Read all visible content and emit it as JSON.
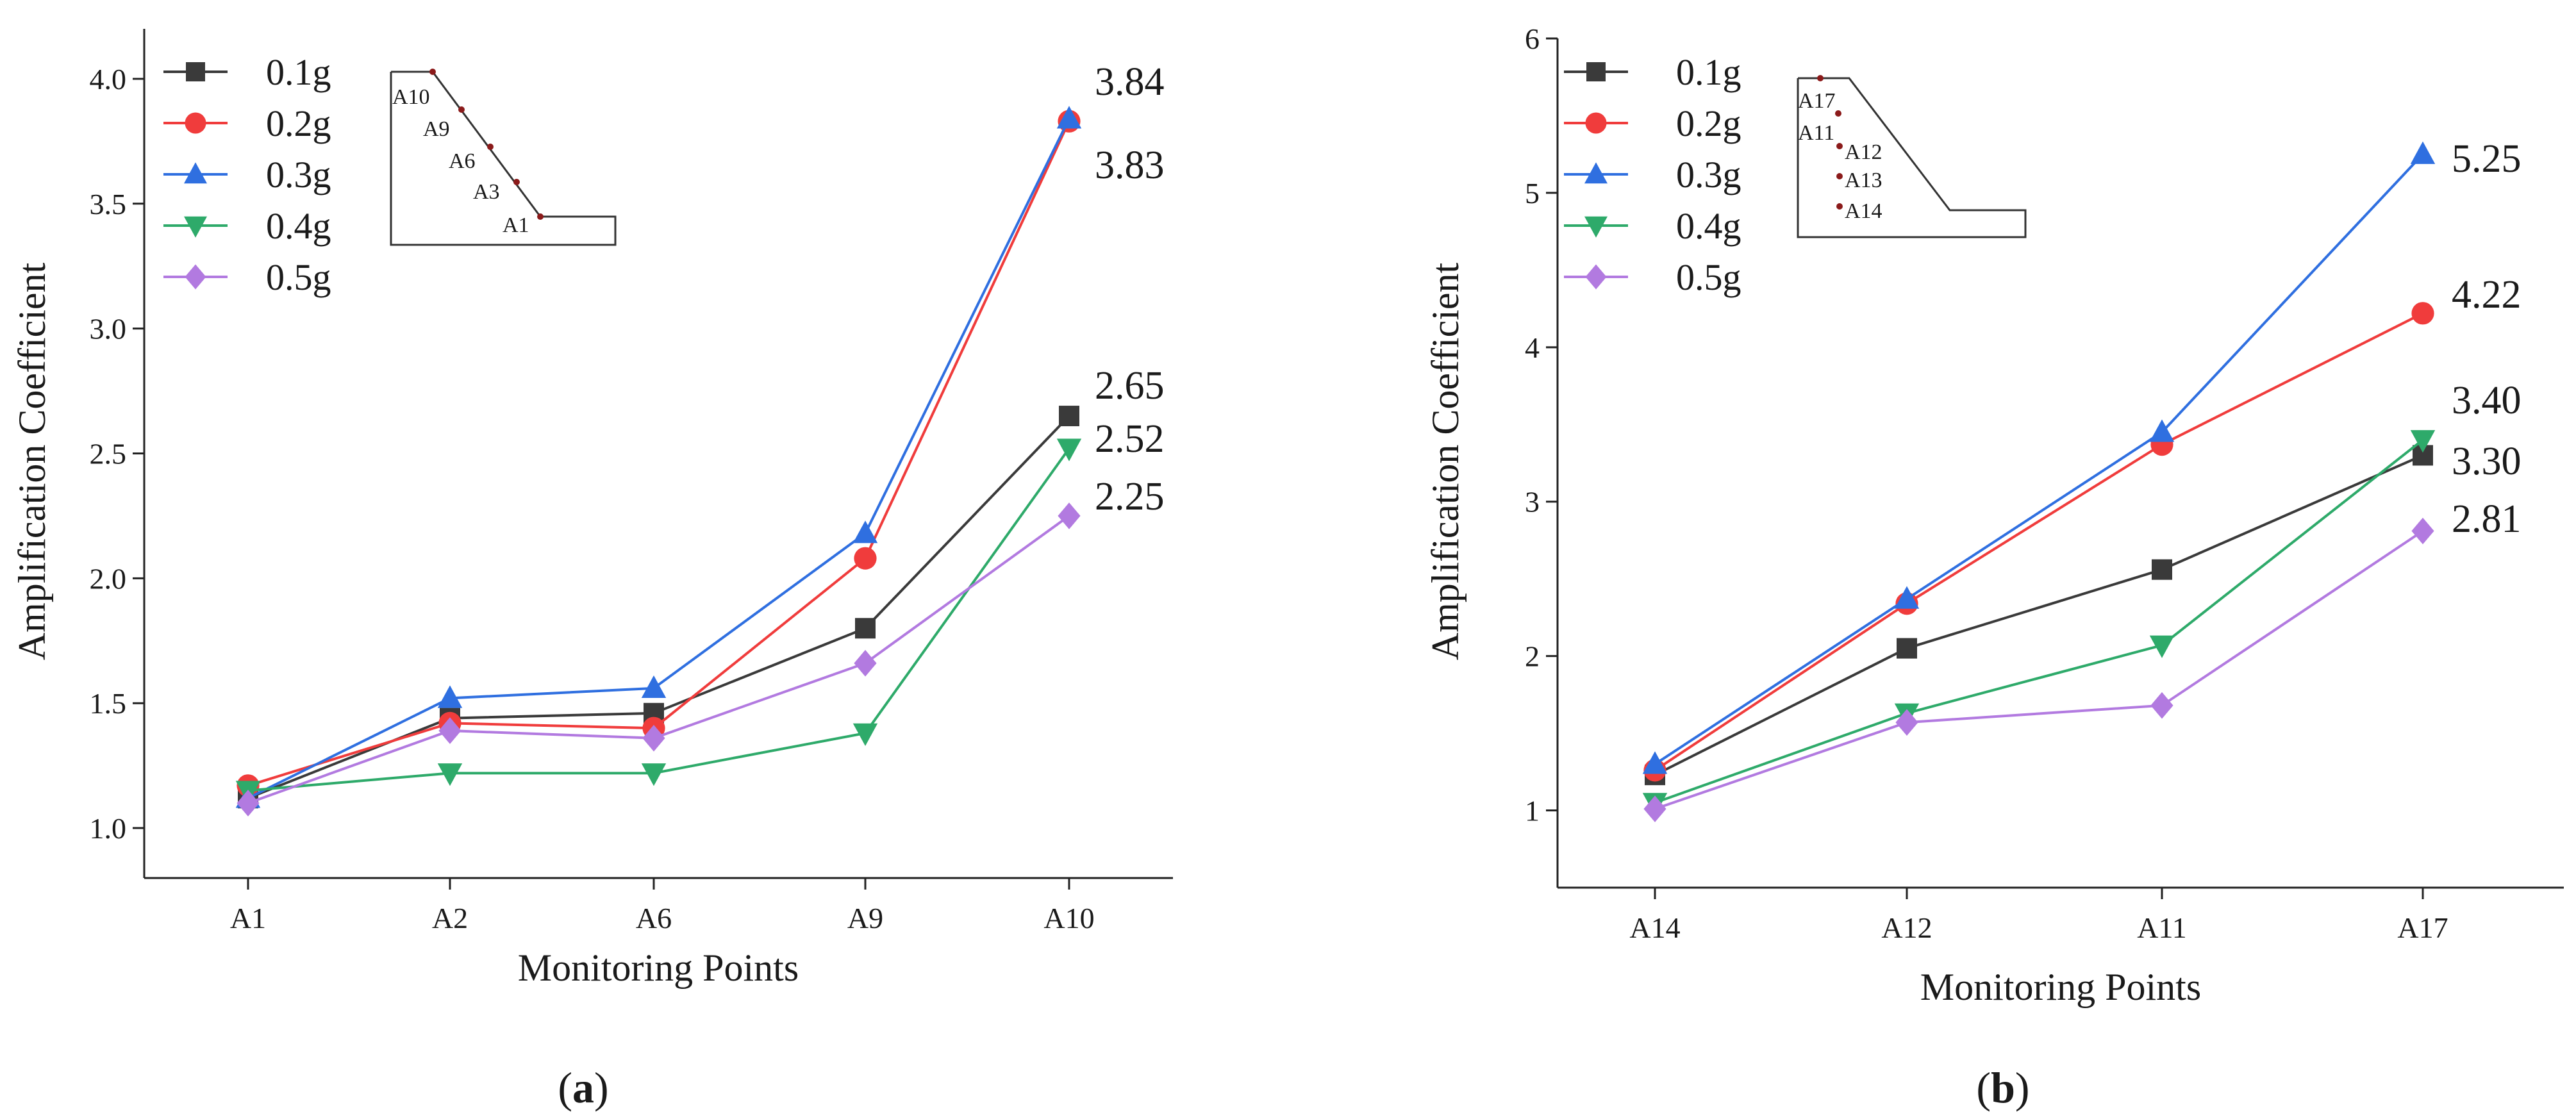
{
  "chart_data": [
    {
      "type": "line",
      "panel_label": "a",
      "categories": [
        "A1",
        "A2",
        "A6",
        "A9",
        "A10"
      ],
      "xlabel": "Monitoring Points",
      "ylabel": "Amplification Coefficient",
      "ylim": [
        0.8,
        4.2
      ],
      "yticks": [
        "1.0",
        "1.5",
        "2.0",
        "2.5",
        "3.0",
        "3.5",
        "4.0"
      ],
      "grid": false,
      "legend_position": "top-left",
      "series": [
        {
          "name": "0.1g",
          "color": "#3a3a3a",
          "marker": "square",
          "values": [
            1.12,
            1.44,
            1.46,
            1.8,
            2.65
          ]
        },
        {
          "name": "0.2g",
          "color": "#f03c3c",
          "marker": "circle",
          "values": [
            1.17,
            1.42,
            1.4,
            2.08,
            3.83
          ]
        },
        {
          "name": "0.3g",
          "color": "#2f6fe0",
          "marker": "triangle-up",
          "values": [
            1.12,
            1.52,
            1.56,
            2.18,
            3.84
          ]
        },
        {
          "name": "0.4g",
          "color": "#2eaa6a",
          "marker": "triangle-down",
          "values": [
            1.15,
            1.22,
            1.22,
            1.38,
            2.52
          ]
        },
        {
          "name": "0.5g",
          "color": "#b27ae0",
          "marker": "diamond",
          "values": [
            1.1,
            1.39,
            1.36,
            1.66,
            2.25
          ]
        }
      ],
      "annotations": [
        {
          "text": "3.84",
          "category": "A10",
          "series": "0.3g"
        },
        {
          "text": "3.83",
          "category": "A10",
          "series": "0.2g"
        },
        {
          "text": "2.65",
          "category": "A10",
          "series": "0.1g"
        },
        {
          "text": "2.52",
          "category": "A10",
          "series": "0.4g"
        },
        {
          "text": "2.25",
          "category": "A10",
          "series": "0.5g"
        }
      ],
      "inset_points": [
        "A10",
        "A9",
        "A6",
        "A3",
        "A1"
      ]
    },
    {
      "type": "line",
      "panel_label": "b",
      "categories": [
        "A14",
        "A12",
        "A11",
        "A17"
      ],
      "xlabel": "Monitoring Points",
      "ylabel": "Amplification Coefficient",
      "ylim": [
        0.5,
        6
      ],
      "yticks": [
        "1",
        "2",
        "3",
        "4",
        "5",
        "6"
      ],
      "grid": false,
      "legend_position": "top-left",
      "series": [
        {
          "name": "0.1g",
          "color": "#3a3a3a",
          "marker": "square",
          "values": [
            1.23,
            2.05,
            2.56,
            3.3
          ]
        },
        {
          "name": "0.2g",
          "color": "#f03c3c",
          "marker": "circle",
          "values": [
            1.26,
            2.34,
            3.37,
            4.22
          ]
        },
        {
          "name": "0.3g",
          "color": "#2f6fe0",
          "marker": "triangle-up",
          "values": [
            1.3,
            2.37,
            3.45,
            5.25
          ]
        },
        {
          "name": "0.4g",
          "color": "#2eaa6a",
          "marker": "triangle-down",
          "values": [
            1.05,
            1.63,
            2.07,
            3.4
          ]
        },
        {
          "name": "0.5g",
          "color": "#b27ae0",
          "marker": "diamond",
          "values": [
            1.01,
            1.57,
            1.68,
            2.81
          ]
        }
      ],
      "annotations": [
        {
          "text": "5.25",
          "category": "A17",
          "series": "0.3g"
        },
        {
          "text": "4.22",
          "category": "A17",
          "series": "0.2g"
        },
        {
          "text": "3.40",
          "category": "A17",
          "series": "0.4g"
        },
        {
          "text": "3.30",
          "category": "A17",
          "series": "0.1g"
        },
        {
          "text": "2.81",
          "category": "A17",
          "series": "0.5g"
        }
      ],
      "inset_points": [
        "A17",
        "A11",
        "A12",
        "A13",
        "A14"
      ]
    }
  ]
}
